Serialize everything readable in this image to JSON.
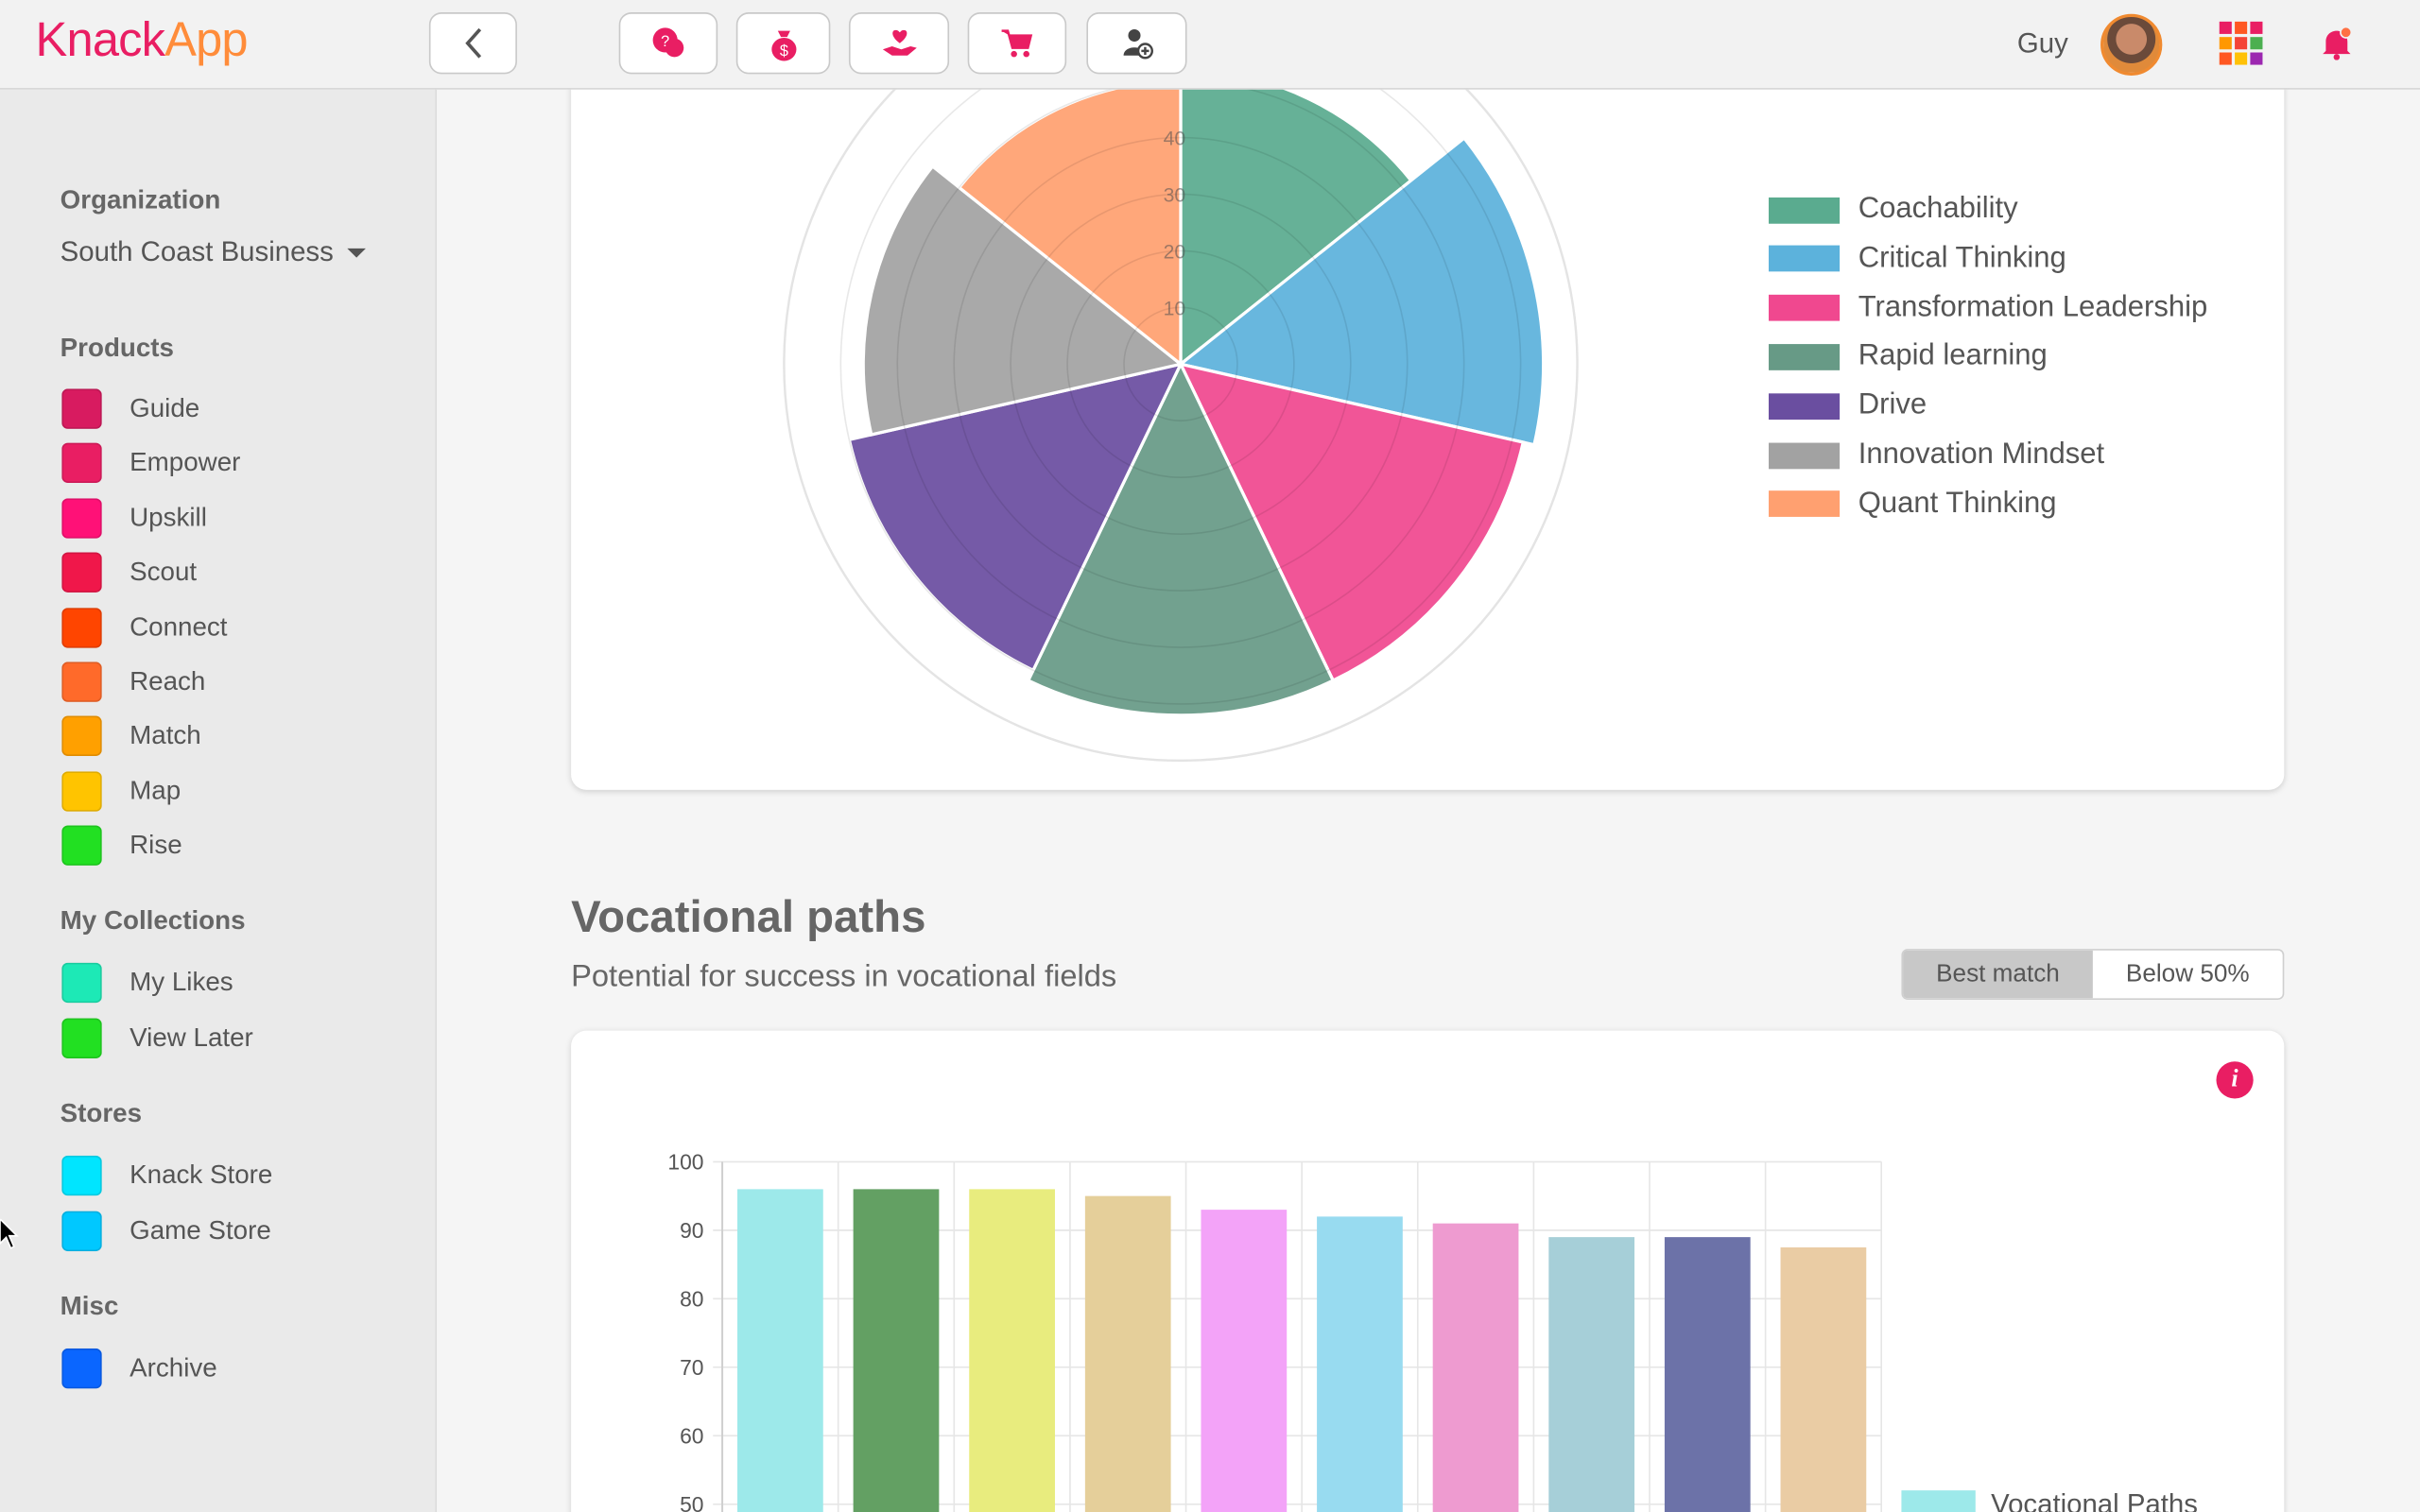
{
  "app": {
    "brand_part1": "Knack",
    "brand_part2": "App",
    "user_name": "Guy"
  },
  "toolbar": {
    "buttons": [
      {
        "name": "back",
        "icon": "chevron-left-icon"
      },
      {
        "name": "questions",
        "icon": "chat-question-icon"
      },
      {
        "name": "money",
        "icon": "money-bag-icon"
      },
      {
        "name": "giving",
        "icon": "hand-heart-icon"
      },
      {
        "name": "cart",
        "icon": "shopping-cart-icon"
      },
      {
        "name": "add-user",
        "icon": "user-add-icon"
      }
    ]
  },
  "sidebar": {
    "organization_title": "Organization",
    "organization_value": "South Coast Business",
    "products_title": "Products",
    "products": [
      {
        "label": "Guide",
        "color": "#d81b60"
      },
      {
        "label": "Empower",
        "color": "#e91e63"
      },
      {
        "label": "Upskill",
        "color": "#ff1177"
      },
      {
        "label": "Scout",
        "color": "#f0174a"
      },
      {
        "label": "Connect",
        "color": "#ff4500"
      },
      {
        "label": "Reach",
        "color": "#ff6a2a"
      },
      {
        "label": "Match",
        "color": "#ffa000"
      },
      {
        "label": "Map",
        "color": "#ffc400"
      },
      {
        "label": "Rise",
        "color": "#22e022"
      }
    ],
    "collections_title": "My Collections",
    "collections": [
      {
        "label": "My Likes",
        "color": "#1de9b6"
      },
      {
        "label": "View Later",
        "color": "#22e022"
      }
    ],
    "stores_title": "Stores",
    "stores": [
      {
        "label": "Knack Store",
        "color": "#00e5ff"
      },
      {
        "label": "Game Store",
        "color": "#00c8ff"
      }
    ],
    "misc_title": "Misc",
    "misc": [
      {
        "label": "Archive",
        "color": "#0a66ff"
      }
    ]
  },
  "radar_chart": {
    "tick_labels": [
      "10",
      "20",
      "30",
      "40"
    ],
    "legend": [
      {
        "label": "Coachability",
        "color": "#5aab8f"
      },
      {
        "label": "Critical Thinking",
        "color": "#5cb2dc"
      },
      {
        "label": "Transformation Leadership",
        "color": "#f0488f"
      },
      {
        "label": "Rapid learning",
        "color": "#679a86"
      },
      {
        "label": "Drive",
        "color": "#6a4ea0"
      },
      {
        "label": "Innovation Mindset",
        "color": "#a2a2a2"
      },
      {
        "label": "Quant Thinking",
        "color": "#ffa070"
      }
    ]
  },
  "vocational": {
    "title": "Vocational paths",
    "subtitle": "Potential for success in vocational fields",
    "filter_best": "Best match",
    "filter_below": "Below 50%",
    "info_glyph": "i"
  },
  "chart_data": [
    {
      "type": "polar-area",
      "categories": [
        "Coachability",
        "Critical Thinking",
        "Transformation Leadership",
        "Rapid learning",
        "Drive",
        "Innovation Mindset",
        "Quant Thinking"
      ],
      "values": [
        52,
        64,
        62,
        62,
        60,
        56,
        50
      ],
      "colors": [
        "#5aab8f",
        "#5cb2dc",
        "#f0488f",
        "#679a86",
        "#6a4ea0",
        "#a2a2a2",
        "#ffa070"
      ],
      "ticks": [
        10,
        20,
        30,
        40
      ],
      "legend_position": "right"
    },
    {
      "type": "bar",
      "values": [
        96,
        96,
        96,
        95,
        93,
        92,
        91,
        89,
        89,
        87.5
      ],
      "colors": [
        "#9de9ea",
        "#63a063",
        "#e8ec7e",
        "#e5cf9a",
        "#f3a3f8",
        "#98dbf0",
        "#ee9bd0",
        "#a6cfd8",
        "#6c72a8",
        "#eacca4"
      ],
      "y_ticks": [
        50,
        60,
        70,
        80,
        90,
        100
      ],
      "ylim": [
        0,
        100
      ],
      "series": [
        {
          "name": "Vocational Paths"
        }
      ],
      "legend_position": "right",
      "grid": true
    }
  ],
  "icons": {
    "apps_grid_colors": [
      "#e91e63",
      "#ff5722",
      "#e91e63",
      "#ff9800",
      "#f44336",
      "#4caf50",
      "#ff5722",
      "#ffc107",
      "#9c27b0"
    ]
  }
}
